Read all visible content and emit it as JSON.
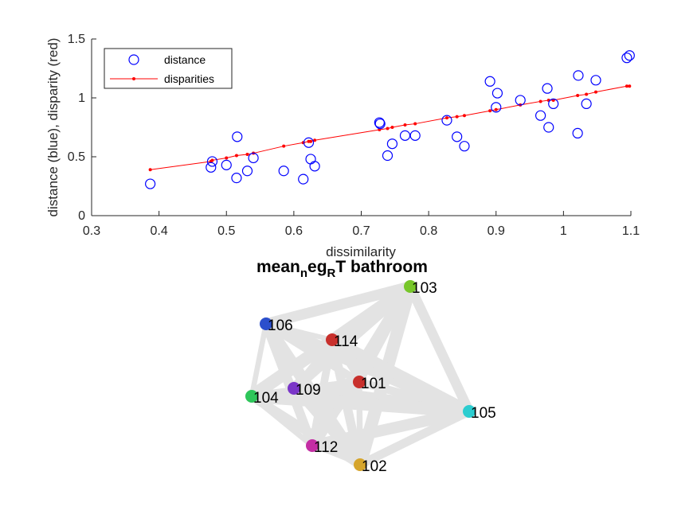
{
  "colors": {
    "distance_marker": "#0000ff",
    "disparity_line": "#ff0000",
    "axis": "#262626",
    "edge": "#e3e3e3",
    "background": "#ffffff"
  },
  "chart_data": [
    {
      "type": "scatter",
      "xlabel": "dissimilarity",
      "ylabel": "distance (blue), disparity (red)",
      "xlim": [
        0.3,
        1.1
      ],
      "ylim": [
        0,
        1.5
      ],
      "xticks": [
        "0.3",
        "0.4",
        "0.5",
        "0.6",
        "0.7",
        "0.8",
        "0.9",
        "1",
        "1.1"
      ],
      "yticks": [
        "0",
        "0.5",
        "1",
        "1.5"
      ],
      "xtick_values": [
        0.3,
        0.4,
        0.5,
        0.6,
        0.7,
        0.8,
        0.9,
        1.0,
        1.1
      ],
      "ytick_values": [
        0,
        0.5,
        1,
        1.5
      ],
      "legend_position": "top-left",
      "series": [
        {
          "name": "distance",
          "marker": "circle-open",
          "points": [
            [
              0.387,
              0.27
            ],
            [
              0.477,
              0.41
            ],
            [
              0.479,
              0.46
            ],
            [
              0.5,
              0.43
            ],
            [
              0.515,
              0.32
            ],
            [
              0.516,
              0.67
            ],
            [
              0.531,
              0.38
            ],
            [
              0.54,
              0.49
            ],
            [
              0.585,
              0.38
            ],
            [
              0.614,
              0.31
            ],
            [
              0.622,
              0.62
            ],
            [
              0.625,
              0.48
            ],
            [
              0.631,
              0.42
            ],
            [
              0.727,
              0.79
            ],
            [
              0.728,
              0.78
            ],
            [
              0.739,
              0.51
            ],
            [
              0.746,
              0.61
            ],
            [
              0.765,
              0.68
            ],
            [
              0.78,
              0.68
            ],
            [
              0.827,
              0.81
            ],
            [
              0.842,
              0.67
            ],
            [
              0.853,
              0.59
            ],
            [
              0.891,
              1.14
            ],
            [
              0.9,
              0.92
            ],
            [
              0.902,
              1.04
            ],
            [
              0.936,
              0.98
            ],
            [
              0.966,
              0.85
            ],
            [
              0.976,
              1.08
            ],
            [
              0.978,
              0.75
            ],
            [
              0.985,
              0.95
            ],
            [
              1.021,
              0.7
            ],
            [
              1.022,
              1.19
            ],
            [
              1.034,
              0.95
            ],
            [
              1.048,
              1.15
            ],
            [
              1.094,
              1.34
            ],
            [
              1.098,
              1.36
            ]
          ]
        },
        {
          "name": "disparities",
          "marker": "dot-line",
          "points": [
            [
              0.387,
              0.39
            ],
            [
              0.477,
              0.46
            ],
            [
              0.479,
              0.47
            ],
            [
              0.5,
              0.49
            ],
            [
              0.515,
              0.51
            ],
            [
              0.531,
              0.52
            ],
            [
              0.54,
              0.53
            ],
            [
              0.585,
              0.59
            ],
            [
              0.614,
              0.62
            ],
            [
              0.622,
              0.63
            ],
            [
              0.625,
              0.63
            ],
            [
              0.631,
              0.64
            ],
            [
              0.727,
              0.73
            ],
            [
              0.739,
              0.74
            ],
            [
              0.746,
              0.75
            ],
            [
              0.765,
              0.77
            ],
            [
              0.78,
              0.78
            ],
            [
              0.827,
              0.83
            ],
            [
              0.842,
              0.84
            ],
            [
              0.853,
              0.85
            ],
            [
              0.891,
              0.89
            ],
            [
              0.9,
              0.9
            ],
            [
              0.936,
              0.94
            ],
            [
              0.966,
              0.97
            ],
            [
              0.978,
              0.98
            ],
            [
              0.985,
              0.98
            ],
            [
              1.021,
              1.02
            ],
            [
              1.034,
              1.03
            ],
            [
              1.048,
              1.05
            ],
            [
              1.094,
              1.1
            ],
            [
              1.098,
              1.1
            ]
          ]
        }
      ]
    },
    {
      "type": "network",
      "title_parts": [
        "mean",
        "n",
        "eg",
        "R",
        "T bathroom"
      ],
      "nodes": [
        {
          "id": "103",
          "color": "#77c62a"
        },
        {
          "id": "106",
          "color": "#2b4fcc"
        },
        {
          "id": "114",
          "color": "#c8302c"
        },
        {
          "id": "101",
          "color": "#c8302c"
        },
        {
          "id": "109",
          "color": "#7a35c8"
        },
        {
          "id": "104",
          "color": "#2ec65a"
        },
        {
          "id": "105",
          "color": "#2ccdd0"
        },
        {
          "id": "112",
          "color": "#c42ea4"
        },
        {
          "id": "102",
          "color": "#d6a52c"
        }
      ]
    }
  ]
}
